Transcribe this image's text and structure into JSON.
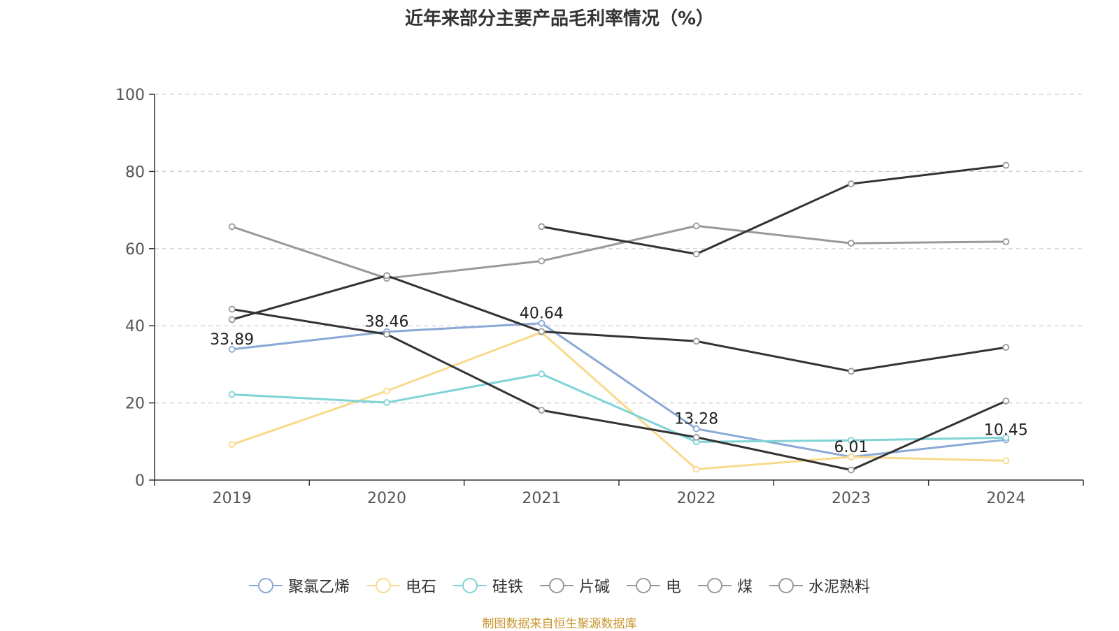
{
  "chart_data": {
    "type": "line",
    "title": "近年来部分主要产品毛利率情况（%）",
    "categories": [
      "2019",
      "2020",
      "2021",
      "2022",
      "2023",
      "2024"
    ],
    "ylim": [
      0,
      100
    ],
    "yticks": [
      0,
      20,
      40,
      60,
      80,
      100
    ],
    "grid": true,
    "legend_position": "bottom",
    "series": [
      {
        "name": "聚氯乙烯",
        "color": "#8aa9d6",
        "values": [
          33.89,
          38.46,
          40.64,
          13.28,
          6.01,
          10.45
        ],
        "labels": [
          "33.89",
          "38.46",
          "40.64",
          "13.28",
          "6.01",
          "10.45"
        ]
      },
      {
        "name": "电石",
        "color": "#f9d98c",
        "values": [
          9.2,
          23.1,
          38.3,
          2.8,
          6.0,
          5.0
        ]
      },
      {
        "name": "硅铁",
        "color": "#7fd3d6",
        "values": [
          22.2,
          20.1,
          27.5,
          9.9,
          10.3,
          11.0
        ]
      },
      {
        "name": "片碱",
        "color": "#333333",
        "values": [
          44.3,
          37.8,
          18.1,
          11.1,
          2.6,
          20.5
        ]
      },
      {
        "name": "电",
        "color": "#999999",
        "values": [
          65.7,
          52.3,
          56.8,
          65.9,
          61.4,
          61.8
        ]
      },
      {
        "name": "煤",
        "color": "#333333",
        "values": [
          41.6,
          53.0,
          38.5,
          36.0,
          28.2,
          34.4
        ]
      },
      {
        "name": "水泥熟料",
        "color": "#333333",
        "values": [
          null,
          null,
          65.7,
          58.6,
          76.8,
          81.6
        ]
      }
    ]
  },
  "legend_marker_color": "#999999",
  "source_text": "制图数据来自恒生聚源数据库"
}
